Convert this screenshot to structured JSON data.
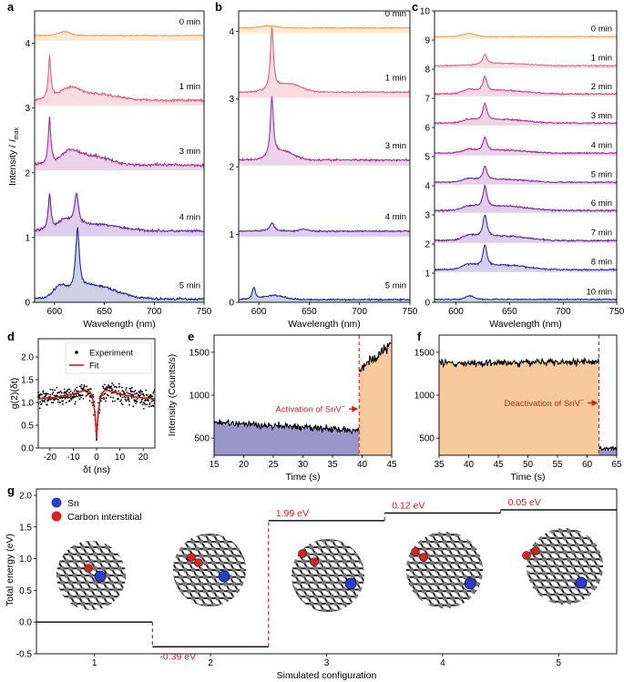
{
  "panel_letters": [
    "a",
    "b",
    "c",
    "d",
    "e",
    "f",
    "g"
  ],
  "chart_data": [
    {
      "id": "a",
      "type": "line",
      "xlabel": "Wavelength (nm)",
      "ylabel": "Intensity / I_max",
      "ylabel_main": "Intensity / ",
      "ylabel_italic": "I",
      "ylabel_sub": "max",
      "xlim": [
        580,
        750
      ],
      "ylim": [
        0,
        4.5
      ],
      "xticks": [
        600,
        650,
        700,
        750
      ],
      "yticks": [
        0,
        1,
        2,
        3,
        4
      ],
      "series": [
        {
          "name": "5 min",
          "baseline": 0.05,
          "color": "#1f2a8c",
          "noise": 0.02,
          "peaks": [
            [
              623,
              0.96,
              2.2
            ],
            [
              605,
              0.15,
              6
            ],
            [
              640,
              0.2,
              22
            ]
          ]
        },
        {
          "name": "4 min",
          "baseline": 1.1,
          "color": "#6a1fb0",
          "noise": 0.02,
          "peaks": [
            [
              595,
              0.55,
              1.6
            ],
            [
              622,
              0.48,
              2.5
            ],
            [
              610,
              0.12,
              6
            ],
            [
              640,
              0.1,
              25
            ]
          ]
        },
        {
          "name": "3 min",
          "baseline": 2.12,
          "color": "#a8309e",
          "noise": 0.025,
          "peaks": [
            [
              595,
              0.72,
              1.5
            ],
            [
              615,
              0.15,
              8
            ],
            [
              635,
              0.15,
              18
            ]
          ]
        },
        {
          "name": "1 min",
          "baseline": 3.12,
          "color": "#e0607a",
          "noise": 0.02,
          "peaks": [
            [
              595,
              0.65,
              1.5
            ],
            [
              615,
              0.15,
              10
            ],
            [
              640,
              0.1,
              22
            ]
          ]
        },
        {
          "name": "0 min",
          "baseline": 4.12,
          "color": "#f0a050",
          "noise": 0.01,
          "peaks": [
            [
              610,
              0.06,
              6
            ]
          ]
        }
      ]
    },
    {
      "id": "b",
      "type": "line",
      "xlabel": "Wavelength (nm)",
      "xlim": [
        580,
        750
      ],
      "ylim": [
        0,
        4.3
      ],
      "xticks": [
        600,
        650,
        700,
        750
      ],
      "yticks": [
        0,
        1,
        2,
        3,
        4
      ],
      "series": [
        {
          "name": "5 min",
          "baseline": 0.04,
          "color": "#1f2a8c",
          "noise": 0.012,
          "peaks": [
            [
              595,
              0.18,
              1.8
            ],
            [
              615,
              0.06,
              10
            ]
          ]
        },
        {
          "name": "4 min",
          "baseline": 1.05,
          "color": "#6a1fb0",
          "noise": 0.012,
          "peaks": [
            [
              613,
              0.12,
              2.5
            ],
            [
              645,
              0.03,
              4
            ]
          ]
        },
        {
          "name": "3 min",
          "baseline": 2.1,
          "color": "#a8309e",
          "noise": 0.015,
          "peaks": [
            [
              613,
              0.88,
              1.8
            ],
            [
              625,
              0.12,
              10
            ]
          ]
        },
        {
          "name": "1 min",
          "baseline": 3.1,
          "color": "#e0607a",
          "noise": 0.012,
          "peaks": [
            [
              613,
              0.92,
              1.8
            ],
            [
              630,
              0.12,
              12
            ]
          ]
        },
        {
          "name": "0 min",
          "baseline": 4.05,
          "color": "#f0a050",
          "noise": 0.008,
          "peaks": [
            [
              610,
              0.03,
              8
            ]
          ]
        }
      ]
    },
    {
      "id": "c",
      "type": "line",
      "xlabel": "Wavelength (nm)",
      "xlim": [
        580,
        750
      ],
      "ylim": [
        0,
        10
      ],
      "xticks": [
        600,
        650,
        700,
        750
      ],
      "yticks": [
        0,
        1,
        2,
        3,
        4,
        5,
        6,
        7,
        8,
        9,
        10
      ],
      "series": [
        {
          "name": "10 min",
          "baseline": 0.1,
          "color": "#1f2a8c",
          "noise": 0.02,
          "peaks": [
            [
              613,
              0.12,
              4
            ]
          ]
        },
        {
          "name": "8 min",
          "baseline": 1.12,
          "color": "#3a2aa0",
          "noise": 0.03,
          "peaks": [
            [
              627,
              0.75,
              2.2
            ],
            [
              612,
              0.15,
              6
            ],
            [
              645,
              0.15,
              20
            ]
          ]
        },
        {
          "name": "7 min",
          "baseline": 2.12,
          "color": "#5a24aa",
          "noise": 0.03,
          "peaks": [
            [
              627,
              0.8,
              2.2
            ],
            [
              612,
              0.15,
              6
            ],
            [
              645,
              0.15,
              20
            ]
          ]
        },
        {
          "name": "6 min",
          "baseline": 3.15,
          "color": "#7326a8",
          "noise": 0.03,
          "peaks": [
            [
              627,
              0.75,
              2.2
            ],
            [
              612,
              0.12,
              6
            ],
            [
              645,
              0.15,
              20
            ]
          ]
        },
        {
          "name": "5 min",
          "baseline": 4.12,
          "color": "#8a28a4",
          "noise": 0.025,
          "peaks": [
            [
              627,
              0.5,
              2.2
            ],
            [
              612,
              0.1,
              6
            ],
            [
              645,
              0.1,
              20
            ]
          ]
        },
        {
          "name": "4 min",
          "baseline": 5.12,
          "color": "#a02c9e",
          "noise": 0.025,
          "peaks": [
            [
              627,
              0.48,
              2.2
            ],
            [
              612,
              0.1,
              6
            ],
            [
              645,
              0.1,
              20
            ]
          ]
        },
        {
          "name": "3 min",
          "baseline": 6.15,
          "color": "#b8348e",
          "noise": 0.025,
          "peaks": [
            [
              627,
              0.62,
              2.2
            ],
            [
              612,
              0.1,
              6
            ],
            [
              645,
              0.12,
              20
            ]
          ]
        },
        {
          "name": "2 min",
          "baseline": 7.15,
          "color": "#d04a80",
          "noise": 0.025,
          "peaks": [
            [
              627,
              0.55,
              2.2
            ],
            [
              612,
              0.12,
              6
            ],
            [
              645,
              0.12,
              20
            ]
          ]
        },
        {
          "name": "1 min",
          "baseline": 8.12,
          "color": "#e6687a",
          "noise": 0.02,
          "peaks": [
            [
              627,
              0.35,
              2.2
            ],
            [
              645,
              0.08,
              20
            ]
          ]
        },
        {
          "name": "0 min",
          "baseline": 9.12,
          "color": "#f0a050",
          "noise": 0.015,
          "peaks": [
            [
              612,
              0.1,
              6
            ]
          ]
        }
      ]
    },
    {
      "id": "d",
      "type": "scatter",
      "xlabel": "δt (ns)",
      "ylabel": "g(2)(δt)",
      "xlim": [
        -25,
        25
      ],
      "ylim": [
        0,
        2.4
      ],
      "xticks": [
        -20,
        -10,
        0,
        10,
        20
      ],
      "yticks": [
        0.0,
        0.5,
        1.0,
        1.5,
        2.0
      ],
      "legend": [
        "Experiment",
        "Fit"
      ],
      "fit": {
        "dip_min": 0.15,
        "dip_width": 1.2,
        "bunch_amp": 0.38,
        "bunch_tau": 10,
        "plateau": 1.05
      }
    },
    {
      "id": "e",
      "type": "area",
      "xlabel": "Time (s)",
      "ylabel": "Intensity (Counts/s)",
      "xlim": [
        15,
        45
      ],
      "ylim": [
        300,
        1700
      ],
      "xticks": [
        15,
        20,
        25,
        30,
        35,
        40,
        45
      ],
      "yticks": [
        500,
        1000,
        1500
      ],
      "switch_time": 39.5,
      "before": {
        "start": 680,
        "end": 590,
        "color": "#9a96cc"
      },
      "after": {
        "start": 1300,
        "end": 1600,
        "color": "#f8c99a"
      },
      "annotation": "Activation of SnV",
      "annotation_sup": "−"
    },
    {
      "id": "f",
      "type": "area",
      "xlabel": "Time (s)",
      "xlim": [
        35,
        65
      ],
      "ylim": [
        300,
        1700
      ],
      "xticks": [
        35,
        40,
        45,
        50,
        55,
        60,
        65
      ],
      "yticks": [
        500,
        1000,
        1500
      ],
      "switch_time": 62,
      "before": {
        "start": 1370,
        "end": 1390,
        "color": "#f8c99a"
      },
      "after": {
        "start": 380,
        "end": 380,
        "color": "#9a96cc"
      },
      "annotation": "Deactivation of SnV",
      "annotation_sup": "−"
    },
    {
      "id": "g",
      "type": "line",
      "xlabel": "Simulated configuration",
      "ylabel": "Total energy (eV)",
      "xlim": [
        0.5,
        5.5
      ],
      "ylim": [
        -0.5,
        2.1
      ],
      "xticks": [
        1,
        2,
        3,
        4,
        5
      ],
      "yticks": [
        -0.5,
        0.0,
        0.5,
        1.0,
        1.5,
        2.0
      ],
      "categories": [
        "1",
        "2",
        "3",
        "4",
        "5"
      ],
      "energies": [
        0.0,
        -0.39,
        1.6,
        1.72,
        1.77
      ],
      "step_labels": [
        "-0.39 eV",
        "1.99 eV",
        "0.12 eV",
        "0.05 eV"
      ],
      "legend": [
        {
          "label": "Sn",
          "color": "#2a3bd6"
        },
        {
          "label": "Carbon interstitial",
          "color": "#e02020"
        }
      ]
    }
  ]
}
